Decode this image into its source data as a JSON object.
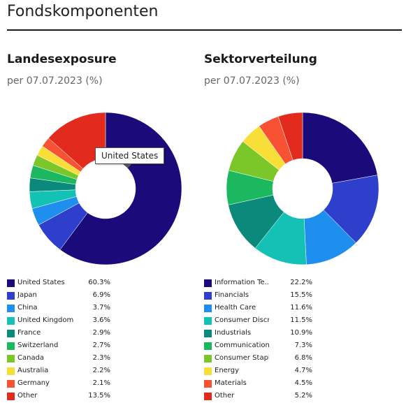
{
  "page": {
    "title": "Fondskomponenten"
  },
  "country": {
    "heading": "Landesexposure",
    "subtitle": "per 07.07.2023 (%)",
    "tooltip": "United States",
    "items": [
      {
        "label": "United States",
        "value": "60.3%",
        "share": 60.3,
        "color": "#1a0a7a"
      },
      {
        "label": "Japan",
        "value": "6.9%",
        "share": 6.9,
        "color": "#2e3fcc"
      },
      {
        "label": "China",
        "value": "3.7%",
        "share": 3.7,
        "color": "#1e8fef"
      },
      {
        "label": "United Kingdom",
        "value": "3.6%",
        "share": 3.6,
        "color": "#13c2b5"
      },
      {
        "label": "France",
        "value": "2.9%",
        "share": 2.9,
        "color": "#0b8a7c"
      },
      {
        "label": "Switzerland",
        "value": "2.7%",
        "share": 2.7,
        "color": "#1bb85f"
      },
      {
        "label": "Canada",
        "value": "2.3%",
        "share": 2.3,
        "color": "#7bc72a"
      },
      {
        "label": "Australia",
        "value": "2.2%",
        "share": 2.2,
        "color": "#f7df37"
      },
      {
        "label": "Germany",
        "value": "2.1%",
        "share": 2.1,
        "color": "#f75234"
      },
      {
        "label": "Other",
        "value": "13.5%",
        "share": 13.5,
        "color": "#e22b1c"
      }
    ]
  },
  "sector": {
    "heading": "Sektorverteilung",
    "subtitle": "per 07.07.2023 (%)",
    "items": [
      {
        "label": "Information Te..",
        "value": "22.2%",
        "share": 22.2,
        "color": "#1a0a7a"
      },
      {
        "label": "Financials",
        "value": "15.5%",
        "share": 15.5,
        "color": "#2e3fcc"
      },
      {
        "label": "Health Care",
        "value": "11.6%",
        "share": 11.6,
        "color": "#1e8fef"
      },
      {
        "label": "Consumer Discr..",
        "value": "11.5%",
        "share": 11.5,
        "color": "#13c2b5"
      },
      {
        "label": "Industrials",
        "value": "10.9%",
        "share": 10.9,
        "color": "#0b8a7c"
      },
      {
        "label": "Communication ..",
        "value": "7.3%",
        "share": 7.3,
        "color": "#1bb85f"
      },
      {
        "label": "Consumer Staples",
        "value": "6.8%",
        "share": 6.8,
        "color": "#7bc72a"
      },
      {
        "label": "Energy",
        "value": "4.7%",
        "share": 4.7,
        "color": "#f7df37"
      },
      {
        "label": "Materials",
        "value": "4.5%",
        "share": 4.5,
        "color": "#f75234"
      },
      {
        "label": "Other",
        "value": "5.2%",
        "share": 5.2,
        "color": "#e22b1c"
      }
    ]
  },
  "chart_data": [
    {
      "type": "pie",
      "title": "Landesexposure",
      "subtitle": "per 07.07.2023 (%)",
      "categories": [
        "United States",
        "Japan",
        "China",
        "United Kingdom",
        "France",
        "Switzerland",
        "Canada",
        "Australia",
        "Germany",
        "Other"
      ],
      "values": [
        60.3,
        6.9,
        3.7,
        3.6,
        2.9,
        2.7,
        2.3,
        2.2,
        2.1,
        13.5
      ],
      "legend": "bottom"
    },
    {
      "type": "pie",
      "title": "Sektorverteilung",
      "subtitle": "per 07.07.2023 (%)",
      "categories": [
        "Information Te..",
        "Financials",
        "Health Care",
        "Consumer Discr..",
        "Industrials",
        "Communication ..",
        "Consumer Staples",
        "Energy",
        "Materials",
        "Other"
      ],
      "values": [
        22.2,
        15.5,
        11.6,
        11.5,
        10.9,
        7.3,
        6.8,
        4.7,
        4.5,
        5.2
      ],
      "legend": "bottom"
    }
  ]
}
